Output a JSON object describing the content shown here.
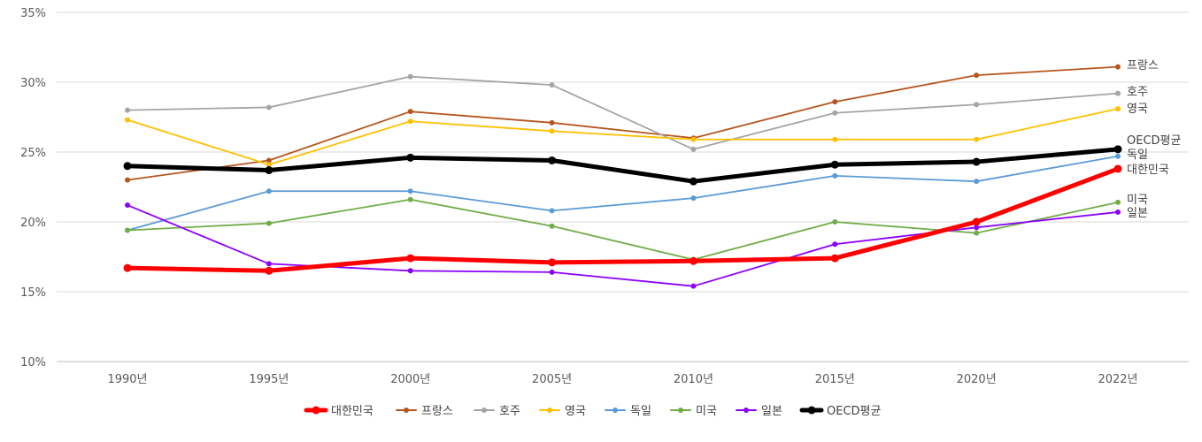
{
  "chart_data": {
    "type": "line",
    "title": "",
    "xlabel": "",
    "ylabel": "",
    "categories": [
      "1990년",
      "1995년",
      "2000년",
      "2005년",
      "2010년",
      "2015년",
      "2020년",
      "2022년"
    ],
    "ylim": [
      0.1,
      0.35
    ],
    "yticks": [
      "10%",
      "15%",
      "20%",
      "25%",
      "30%",
      "35%"
    ],
    "grid": true,
    "legend_position": "bottom",
    "series": [
      {
        "name": "대한민국",
        "color": "#ff0000",
        "emphasis": true,
        "values": [
          0.167,
          0.165,
          0.174,
          0.171,
          0.172,
          0.174,
          0.2,
          0.238
        ]
      },
      {
        "name": "프랑스",
        "color": "#b5561e",
        "emphasis": false,
        "values": [
          0.23,
          0.244,
          0.279,
          0.271,
          0.26,
          0.286,
          0.305,
          0.311
        ]
      },
      {
        "name": "호주",
        "color": "#a5a5a5",
        "emphasis": false,
        "values": [
          0.28,
          0.282,
          0.304,
          0.298,
          0.252,
          0.278,
          0.284,
          0.292
        ]
      },
      {
        "name": "영국",
        "color": "#ffc000",
        "emphasis": false,
        "values": [
          0.273,
          0.241,
          0.272,
          0.265,
          0.259,
          0.259,
          0.259,
          0.281
        ]
      },
      {
        "name": "독일",
        "color": "#5b9bd5",
        "emphasis": false,
        "values": [
          0.194,
          0.222,
          0.222,
          0.208,
          0.217,
          0.233,
          0.229,
          0.247
        ]
      },
      {
        "name": "미국",
        "color": "#70ad47",
        "emphasis": false,
        "values": [
          0.194,
          0.199,
          0.216,
          0.197,
          0.173,
          0.2,
          0.192,
          0.214
        ]
      },
      {
        "name": "일본",
        "color": "#8b00ff",
        "emphasis": false,
        "values": [
          0.212,
          0.17,
          0.165,
          0.164,
          0.154,
          0.184,
          0.196,
          0.207
        ]
      },
      {
        "name": "OECD평균",
        "color": "#000000",
        "emphasis": true,
        "values": [
          0.24,
          0.237,
          0.246,
          0.244,
          0.229,
          0.241,
          0.243,
          0.252
        ]
      }
    ],
    "end_labels": [
      {
        "text": "프랑스",
        "series": "프랑스"
      },
      {
        "text": "호주",
        "series": "호주"
      },
      {
        "text": "영국",
        "series": "영국"
      },
      {
        "text": "OECD평균",
        "series": "OECD평균"
      },
      {
        "text": "독일",
        "series": "독일"
      },
      {
        "text": "대한민국",
        "series": "대한민국"
      },
      {
        "text": "미국",
        "series": "미국"
      },
      {
        "text": "일본",
        "series": "일본"
      }
    ]
  }
}
